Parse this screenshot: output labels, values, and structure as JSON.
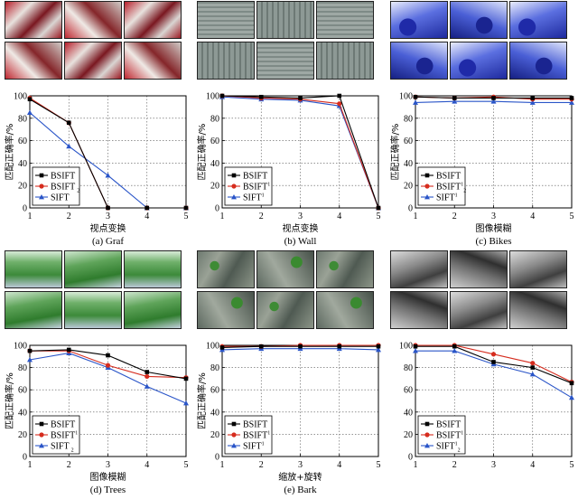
{
  "chart_data": [
    {
      "type": "line",
      "caption": "(a) Graf",
      "theme": "graf",
      "xlabel": "视点变换",
      "ylabel": "匹配正确率/%",
      "x": [
        1,
        2,
        3,
        4,
        5
      ],
      "xlim": [
        1,
        5
      ],
      "ylim": [
        0,
        100
      ],
      "yticks": [
        0,
        20,
        40,
        60,
        80,
        100
      ],
      "grid": true,
      "legend": "bottom-left",
      "series": [
        {
          "name": "BSIFT",
          "color": "#000000",
          "marker": "square",
          "values": [
            97,
            76,
            0,
            0,
            0
          ]
        },
        {
          "name": "BSIFT",
          "sub": "2",
          "color": "#d62c1e",
          "marker": "circle",
          "values": [
            98,
            76,
            0,
            0,
            0
          ]
        },
        {
          "name": "SIFT",
          "color": "#2a55c8",
          "marker": "triangle",
          "values": [
            85,
            55,
            29,
            0,
            0
          ]
        }
      ]
    },
    {
      "type": "line",
      "caption": "(b) Wall",
      "theme": "wall",
      "xlabel": "视点变换",
      "ylabel": "匹配正确率/%",
      "x": [
        1,
        2,
        3,
        4,
        5
      ],
      "xlim": [
        1,
        5
      ],
      "ylim": [
        0,
        100
      ],
      "yticks": [
        0,
        20,
        40,
        60,
        80,
        100
      ],
      "grid": true,
      "legend": "bottom-left",
      "series": [
        {
          "name": "BSIFT",
          "color": "#000000",
          "marker": "square",
          "values": [
            100,
            99,
            98,
            100,
            0
          ]
        },
        {
          "name": "BSIFT",
          "sup": "1",
          "color": "#d62c1e",
          "marker": "circle",
          "values": [
            100,
            98,
            97,
            93,
            0
          ]
        },
        {
          "name": "SIFT",
          "sup": "1",
          "color": "#2a55c8",
          "marker": "triangle",
          "values": [
            99,
            97,
            96,
            91,
            0
          ]
        }
      ]
    },
    {
      "type": "line",
      "caption": "(c) Bikes",
      "theme": "bikes",
      "xlabel": "图像模糊",
      "ylabel": "匹配正确率/%",
      "x": [
        1,
        2,
        3,
        4,
        5
      ],
      "xlim": [
        1,
        5
      ],
      "ylim": [
        0,
        100
      ],
      "yticks": [
        0,
        20,
        40,
        60,
        80,
        100
      ],
      "grid": true,
      "legend": "bottom-left",
      "series": [
        {
          "name": "BSIFT",
          "color": "#000000",
          "marker": "square",
          "values": [
            99,
            98,
            98,
            98,
            98
          ]
        },
        {
          "name": "BSIFT",
          "sup": "1",
          "sub": "2",
          "color": "#d62c1e",
          "marker": "circle",
          "values": [
            99,
            98,
            99,
            97,
            97
          ]
        },
        {
          "name": "SIFT",
          "sup": "1",
          "color": "#2a55c8",
          "marker": "triangle",
          "values": [
            94,
            95,
            95,
            94,
            94
          ]
        }
      ]
    },
    {
      "type": "line",
      "caption": "(d) Trees",
      "theme": "trees",
      "xlabel": "图像模糊",
      "ylabel": "匹配正确率/%",
      "x": [
        1,
        2,
        3,
        4,
        5
      ],
      "xlim": [
        1,
        5
      ],
      "ylim": [
        0,
        100
      ],
      "yticks": [
        0,
        20,
        40,
        60,
        80,
        100
      ],
      "grid": true,
      "legend": "bottom-left",
      "series": [
        {
          "name": "BSIFT",
          "color": "#000000",
          "marker": "square",
          "values": [
            95,
            96,
            91,
            76,
            70
          ]
        },
        {
          "name": "BSIFT",
          "sup": "1",
          "color": "#d62c1e",
          "marker": "circle",
          "values": [
            95,
            95,
            82,
            72,
            71
          ]
        },
        {
          "name": "SIFT",
          "sub": "2",
          "color": "#2a55c8",
          "marker": "triangle",
          "values": [
            87,
            93,
            80,
            63,
            48
          ]
        }
      ]
    },
    {
      "type": "line",
      "caption": "(e) Bark",
      "theme": "bark",
      "xlabel": "缩放+旋转",
      "ylabel": "匹配正确率/%",
      "x": [
        1,
        2,
        3,
        4,
        5
      ],
      "xlim": [
        1,
        5
      ],
      "ylim": [
        0,
        100
      ],
      "yticks": [
        0,
        20,
        40,
        60,
        80,
        100
      ],
      "grid": true,
      "legend": "bottom-left",
      "series": [
        {
          "name": "BSIFT",
          "color": "#000000",
          "marker": "square",
          "values": [
            98,
            99,
            99,
            99,
            99
          ]
        },
        {
          "name": "BSIFT",
          "sup": "1",
          "color": "#d62c1e",
          "marker": "circle",
          "values": [
            99,
            99,
            100,
            100,
            100
          ]
        },
        {
          "name": "SIFT",
          "sup": "1",
          "color": "#2a55c8",
          "marker": "triangle",
          "values": [
            96,
            97,
            97,
            97,
            96
          ]
        }
      ]
    },
    {
      "type": "line",
      "caption": "",
      "theme": "boat",
      "xlabel": "",
      "ylabel": "",
      "x": [
        1,
        2,
        3,
        4,
        5
      ],
      "xlim": [
        1,
        5
      ],
      "ylim": [
        0,
        100
      ],
      "yticks": [
        0,
        20,
        40,
        60,
        80,
        100
      ],
      "grid": true,
      "legend": "bottom-left",
      "series": [
        {
          "name": "BSIFT",
          "color": "#000000",
          "marker": "square",
          "values": [
            99,
            99,
            85,
            80,
            66
          ]
        },
        {
          "name": "BSIFT",
          "sup": "1",
          "color": "#d62c1e",
          "marker": "circle",
          "values": [
            100,
            100,
            92,
            84,
            67
          ]
        },
        {
          "name": "SIFT",
          "sup": "1",
          "sub": "2",
          "color": "#2a55c8",
          "marker": "triangle",
          "values": [
            95,
            95,
            83,
            74,
            53
          ]
        }
      ]
    }
  ]
}
